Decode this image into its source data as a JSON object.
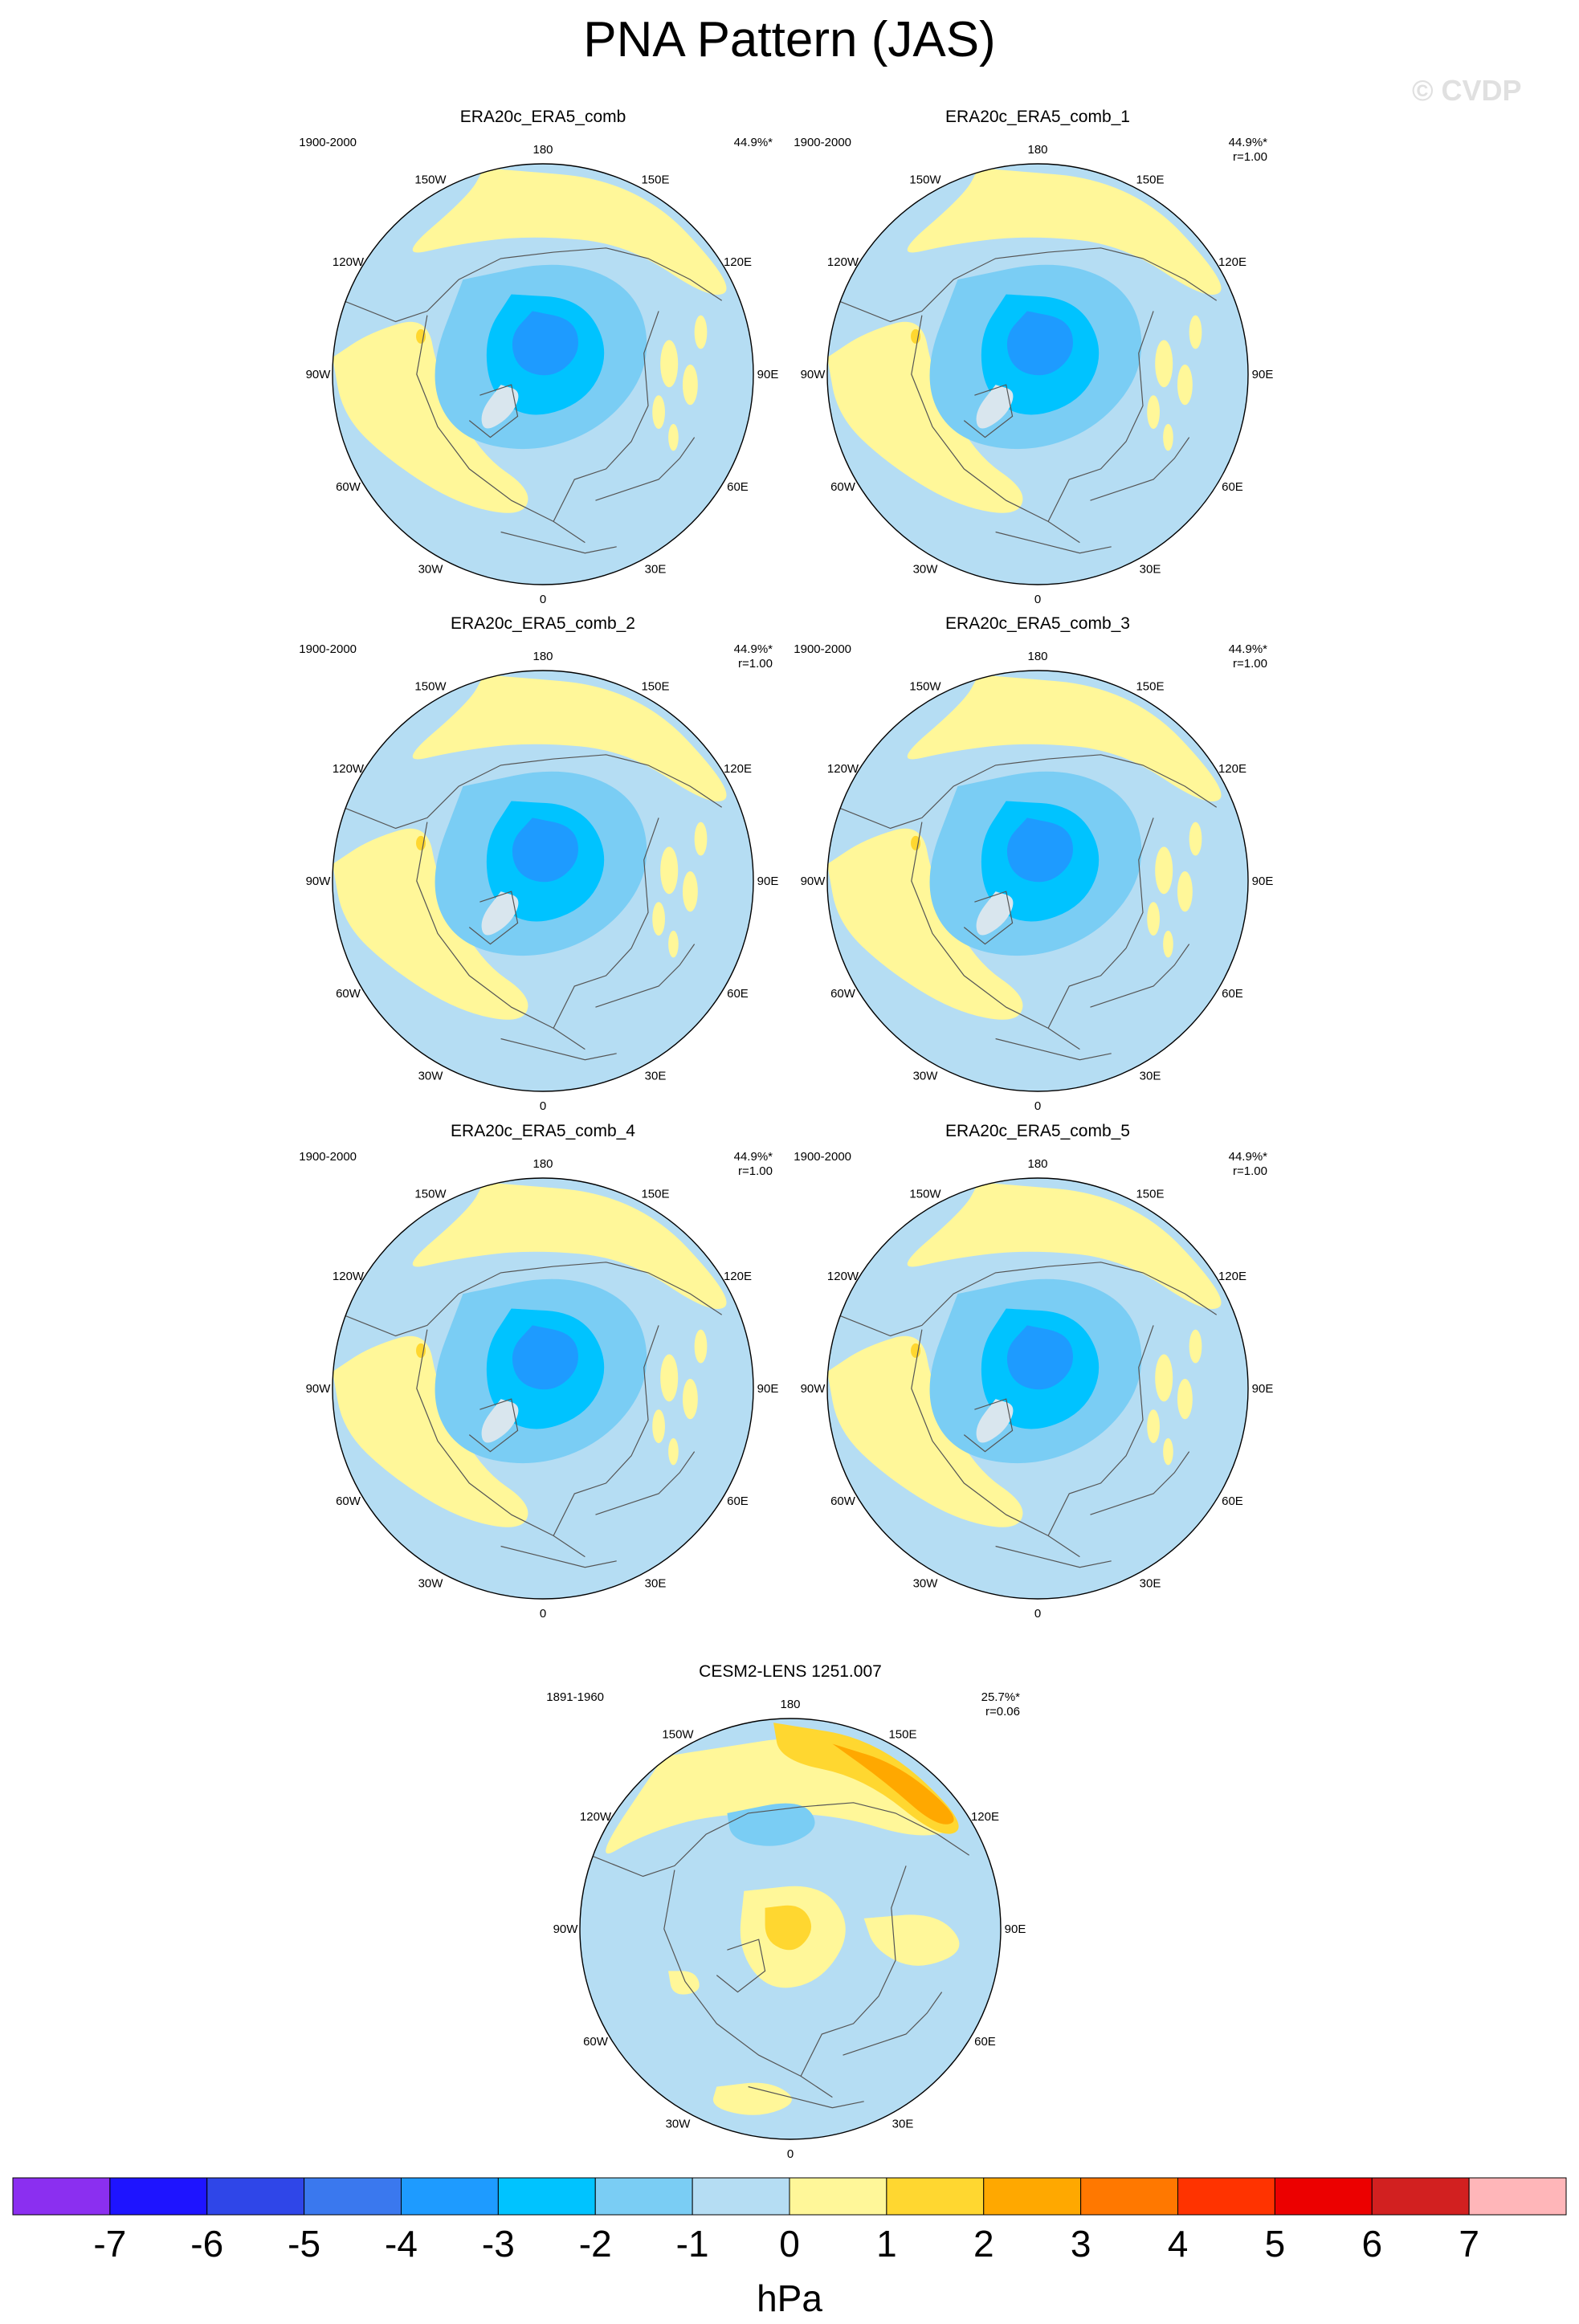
{
  "figure": {
    "title": "PNA Pattern (JAS)",
    "watermark": "© CVDP"
  },
  "lon_labels": [
    "180",
    "150E",
    "120E",
    "90E",
    "60E",
    "30E",
    "0",
    "30W",
    "60W",
    "90W",
    "120W",
    "150W"
  ],
  "panels": [
    {
      "name": "ERA20c_ERA5_comb",
      "years": "1900-2000",
      "pct": "44.9%*",
      "r": "",
      "kind": "era"
    },
    {
      "name": "ERA20c_ERA5_comb_1",
      "years": "1900-2000",
      "pct": "44.9%*",
      "r": "r=1.00",
      "kind": "era"
    },
    {
      "name": "ERA20c_ERA5_comb_2",
      "years": "1900-2000",
      "pct": "44.9%*",
      "r": "r=1.00",
      "kind": "era"
    },
    {
      "name": "ERA20c_ERA5_comb_3",
      "years": "1900-2000",
      "pct": "44.9%*",
      "r": "r=1.00",
      "kind": "era"
    },
    {
      "name": "ERA20c_ERA5_comb_4",
      "years": "1900-2000",
      "pct": "44.9%*",
      "r": "r=1.00",
      "kind": "era"
    },
    {
      "name": "ERA20c_ERA5_comb_5",
      "years": "1900-2000",
      "pct": "44.9%*",
      "r": "r=1.00",
      "kind": "era"
    },
    {
      "name": "CESM2-LENS 1251.007",
      "years": "1891-1960",
      "pct": "25.7%*",
      "r": "r=0.06",
      "kind": "cesm"
    }
  ],
  "colorbar": {
    "unit": "hPa",
    "ticks": [
      "-7",
      "-6",
      "-5",
      "-4",
      "-3",
      "-2",
      "-1",
      "0",
      "1",
      "2",
      "3",
      "4",
      "5",
      "6",
      "7"
    ],
    "colors": [
      "#8b2ff0",
      "#1e14ff",
      "#2f46e8",
      "#3a78ee",
      "#1e9bff",
      "#00c3ff",
      "#7acdf4",
      "#b5ddf3",
      "#fff799",
      "#ffd730",
      "#ffa800",
      "#ff7800",
      "#ff3300",
      "#ec0000",
      "#d22020",
      "#ffb6b9"
    ]
  }
}
